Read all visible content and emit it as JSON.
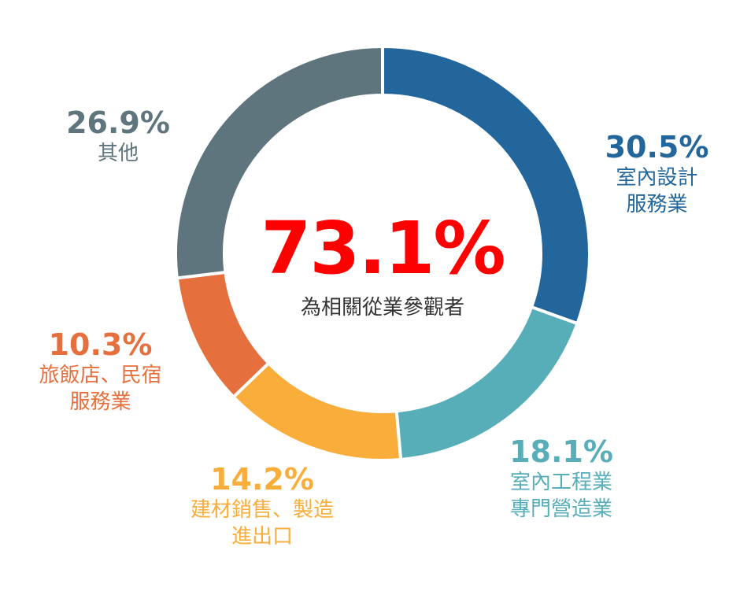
{
  "chart_data": {
    "type": "pie",
    "variant": "donut",
    "center_value": "73.1%",
    "center_caption": "為相關從業參觀者",
    "center_color": "#ff0000",
    "slices": [
      {
        "label": "室內設計\n服務業",
        "value": 30.5,
        "value_label": "30.5%",
        "color": "#22669b"
      },
      {
        "label": "室內工程業\n專門營造業",
        "value": 18.1,
        "value_label": "18.1%",
        "color": "#57aeb8"
      },
      {
        "label": "建材銷售、製造\n進出口",
        "value": 14.2,
        "value_label": "14.2%",
        "color": "#f9ae3c"
      },
      {
        "label": "旅飯店、民宿\n服務業",
        "value": 10.3,
        "value_label": "10.3%",
        "color": "#e5703d"
      },
      {
        "label": "其他",
        "value": 26.9,
        "value_label": "26.9%",
        "color": "#5f757d"
      }
    ]
  }
}
